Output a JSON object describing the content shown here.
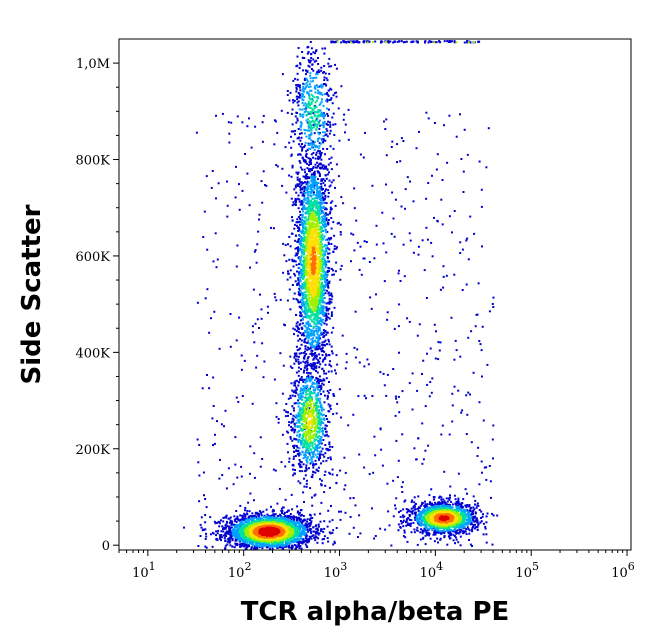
{
  "chart_data": {
    "type": "scatter",
    "xlabel": "TCR alpha/beta PE",
    "ylabel": "Side Scatter",
    "x_scale": "log",
    "xlim": [
      5,
      1100000
    ],
    "ylim": [
      -10000,
      1050000
    ],
    "x_ticks": [
      {
        "value": 10,
        "label": "10",
        "exp": "1"
      },
      {
        "value": 100,
        "label": "10",
        "exp": "2"
      },
      {
        "value": 1000,
        "label": "10",
        "exp": "3"
      },
      {
        "value": 10000,
        "label": "10",
        "exp": "4"
      },
      {
        "value": 100000,
        "label": "10",
        "exp": "5"
      },
      {
        "value": 1000000,
        "label": "10",
        "exp": "6"
      }
    ],
    "y_ticks": [
      {
        "value": 0,
        "label": "0"
      },
      {
        "value": 200000,
        "label": "200K"
      },
      {
        "value": 400000,
        "label": "400K"
      },
      {
        "value": 600000,
        "label": "600K"
      },
      {
        "value": 800000,
        "label": "800K"
      },
      {
        "value": 1000000,
        "label": "1,0M"
      }
    ],
    "grid": false,
    "legend": "none",
    "density_colormap": [
      "#0000d0",
      "#00a0ff",
      "#00e0a0",
      "#a0f000",
      "#ffe000",
      "#ff7000",
      "#e00000"
    ],
    "populations": [
      {
        "x_center": 180,
        "x_log_spread": 0.22,
        "y_center": 30000,
        "y_spread": 18000,
        "count": 2600,
        "peak_density": 1.0
      },
      {
        "x_center": 12000,
        "x_log_spread": 0.17,
        "y_center": 58000,
        "y_spread": 16000,
        "count": 1500,
        "peak_density": 0.9
      },
      {
        "x_center": 520,
        "x_log_spread": 0.09,
        "y_center": 590000,
        "y_spread": 110000,
        "count": 2400,
        "peak_density": 0.75
      },
      {
        "x_center": 480,
        "x_log_spread": 0.1,
        "y_center": 260000,
        "y_spread": 60000,
        "count": 900,
        "peak_density": 0.6
      },
      {
        "x_center": 520,
        "x_log_spread": 0.12,
        "y_center": 900000,
        "y_spread": 70000,
        "count": 500,
        "peak_density": 0.35
      }
    ]
  }
}
